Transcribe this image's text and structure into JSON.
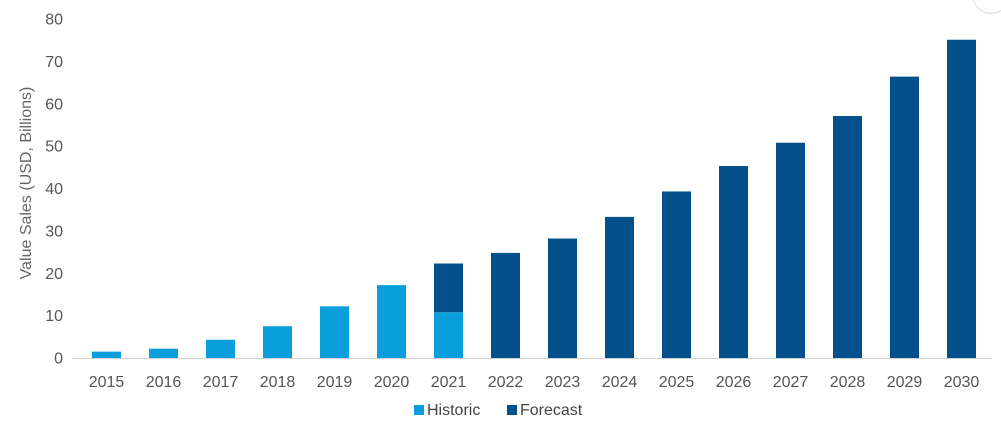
{
  "chart_data": {
    "type": "bar",
    "stacked": true,
    "title": "",
    "xlabel": "",
    "ylabel": "Value Sales (USD, Billions)",
    "ylim": [
      0,
      80
    ],
    "yticks": [
      0,
      10,
      20,
      30,
      40,
      50,
      60,
      70,
      80
    ],
    "grid": false,
    "legend_position": "bottom",
    "categories": [
      "2015",
      "2016",
      "2017",
      "2018",
      "2019",
      "2020",
      "2021",
      "2022",
      "2023",
      "2024",
      "2025",
      "2026",
      "2027",
      "2028",
      "2029",
      "2030"
    ],
    "series": [
      {
        "name": "Historic",
        "color": "#0a9fdc",
        "values": [
          1.5,
          2.2,
          4.3,
          7.5,
          12.2,
          17.2,
          10.8,
          0,
          0,
          0,
          0,
          0,
          0,
          0,
          0,
          0
        ]
      },
      {
        "name": "Forecast",
        "color": "#03508b",
        "values": [
          0,
          0,
          0,
          0,
          0,
          0,
          11.5,
          24.8,
          28.2,
          33.3,
          39.3,
          45.3,
          50.8,
          57.1,
          66.4,
          75.1
        ]
      }
    ]
  }
}
